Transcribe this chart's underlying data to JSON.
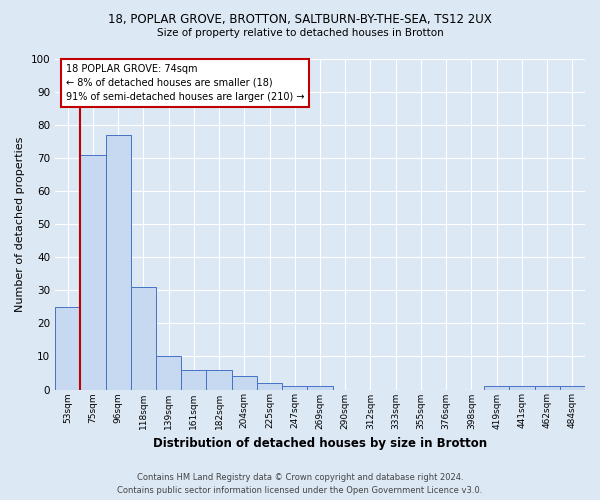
{
  "title1": "18, POPLAR GROVE, BROTTON, SALTBURN-BY-THE-SEA, TS12 2UX",
  "title2": "Size of property relative to detached houses in Brotton",
  "xlabel": "Distribution of detached houses by size in Brotton",
  "ylabel": "Number of detached properties",
  "categories": [
    "53sqm",
    "75sqm",
    "96sqm",
    "118sqm",
    "139sqm",
    "161sqm",
    "182sqm",
    "204sqm",
    "225sqm",
    "247sqm",
    "269sqm",
    "290sqm",
    "312sqm",
    "333sqm",
    "355sqm",
    "376sqm",
    "398sqm",
    "419sqm",
    "441sqm",
    "462sqm",
    "484sqm"
  ],
  "values": [
    25,
    71,
    77,
    31,
    10,
    6,
    6,
    4,
    2,
    1,
    1,
    0,
    0,
    0,
    0,
    0,
    0,
    1,
    1,
    1,
    1
  ],
  "bar_color": "#c6d9f0",
  "bar_edge_color": "#4472c4",
  "vline_x_index": 1,
  "vline_color": "#c00000",
  "annotation_title": "18 POPLAR GROVE: 74sqm",
  "annotation_line1": "← 8% of detached houses are smaller (18)",
  "annotation_line2": "91% of semi-detached houses are larger (210) →",
  "annotation_box_color": "#c00000",
  "annotation_fill": "#ffffff",
  "ylim": [
    0,
    100
  ],
  "yticks": [
    0,
    10,
    20,
    30,
    40,
    50,
    60,
    70,
    80,
    90,
    100
  ],
  "footer1": "Contains HM Land Registry data © Crown copyright and database right 2024.",
  "footer2": "Contains public sector information licensed under the Open Government Licence v3.0.",
  "bg_color": "#dde8f5",
  "plot_bg_color": "#dde8f5",
  "grid_color": "#ffffff"
}
